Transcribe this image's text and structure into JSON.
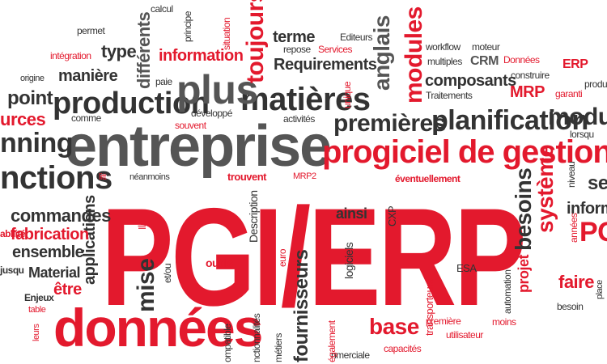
{
  "palette": {
    "red": "#e3192d",
    "dark": "#333333",
    "gray": "#555555",
    "light": "#888888",
    "background": "#ffffff"
  },
  "words": [
    {
      "id": "pgi-erp",
      "text": "PGI/ERP",
      "color": "red"
    },
    {
      "id": "entreprise",
      "text": "entreprise",
      "color": "gray"
    },
    {
      "id": "donnees",
      "text": "données",
      "color": "red"
    },
    {
      "id": "progiciel-de-gestion",
      "text": "progiciel de gestion in",
      "color": "red"
    },
    {
      "id": "production",
      "text": "production",
      "color": "dark"
    },
    {
      "id": "matieres",
      "text": "matières",
      "color": "dark"
    },
    {
      "id": "plus",
      "text": "plus",
      "color": "gray"
    },
    {
      "id": "nctions",
      "text": "nctions",
      "color": "dark"
    },
    {
      "id": "planification",
      "text": "planification",
      "color": "dark"
    },
    {
      "id": "premieres",
      "text": "premières",
      "color": "dark"
    },
    {
      "id": "modules",
      "text": "modules",
      "color": "red"
    },
    {
      "id": "anglais",
      "text": "anglais",
      "color": "gray"
    },
    {
      "id": "toujours",
      "text": "toujours",
      "color": "red"
    },
    {
      "id": "differents",
      "text": "différents",
      "color": "gray"
    },
    {
      "id": "information",
      "text": "information",
      "color": "red"
    },
    {
      "id": "requirements",
      "text": "Requirements",
      "color": "dark"
    },
    {
      "id": "terme",
      "text": "terme",
      "color": "dark"
    },
    {
      "id": "type",
      "text": "type",
      "color": "dark"
    },
    {
      "id": "maniere",
      "text": "manière",
      "color": "dark"
    },
    {
      "id": "point",
      "text": "point",
      "color": "dark"
    },
    {
      "id": "urces",
      "text": "urces",
      "color": "red"
    },
    {
      "id": "nning",
      "text": "nning",
      "color": "dark"
    },
    {
      "id": "commandes",
      "text": "commandes",
      "color": "dark"
    },
    {
      "id": "fabrication",
      "text": "fabrication",
      "color": "red"
    },
    {
      "id": "ensemble",
      "text": "ensemble",
      "color": "dark"
    },
    {
      "id": "material",
      "text": "Material",
      "color": "dark"
    },
    {
      "id": "etre",
      "text": "être",
      "color": "red"
    },
    {
      "id": "enjeux",
      "text": "Enjeux",
      "color": "dark"
    },
    {
      "id": "applications",
      "text": "applications",
      "color": "dark"
    },
    {
      "id": "mise",
      "text": "mise",
      "color": "dark"
    },
    {
      "id": "fournisseurs",
      "text": "fournisseurs",
      "color": "dark"
    },
    {
      "id": "base",
      "text": "base",
      "color": "red"
    },
    {
      "id": "ainsi",
      "text": "ainsi",
      "color": "dark"
    },
    {
      "id": "besoins",
      "text": "besoins",
      "color": "dark"
    },
    {
      "id": "systeme",
      "text": "système",
      "color": "red"
    },
    {
      "id": "projet",
      "text": "projet",
      "color": "red"
    },
    {
      "id": "faire",
      "text": "faire",
      "color": "red"
    },
    {
      "id": "composants",
      "text": "composants",
      "color": "dark"
    },
    {
      "id": "mrp",
      "text": "MRP",
      "color": "red"
    },
    {
      "id": "crm",
      "text": "CRM",
      "color": "gray"
    },
    {
      "id": "erp-small",
      "text": "ERP",
      "color": "red"
    },
    {
      "id": "module-right",
      "text": "module",
      "color": "dark"
    },
    {
      "id": "eventuellement",
      "text": "éventuellement",
      "color": "red"
    },
    {
      "id": "trouvent",
      "text": "trouvent",
      "color": "red"
    },
    {
      "id": "description",
      "text": "Description",
      "color": "dark"
    },
    {
      "id": "outils",
      "text": "outils",
      "color": "red"
    },
    {
      "id": "logiciels",
      "text": "logiciels",
      "color": "dark"
    },
    {
      "id": "transporteurs",
      "text": "transporteurs",
      "color": "red"
    },
    {
      "id": "utilisateur",
      "text": "utilisateur",
      "color": "red"
    },
    {
      "id": "moins",
      "text": "moins",
      "color": "red"
    },
    {
      "id": "capacites",
      "text": "capacités",
      "color": "red"
    },
    {
      "id": "egalement",
      "text": "également",
      "color": "red"
    },
    {
      "id": "euro",
      "text": "euro",
      "color": "red"
    },
    {
      "id": "cxp",
      "text": "CXP",
      "color": "dark"
    },
    {
      "id": "automation",
      "text": "automation",
      "color": "dark"
    },
    {
      "id": "besoin",
      "text": "besoin",
      "color": "dark"
    },
    {
      "id": "esa",
      "text": "ESA",
      "color": "dark"
    },
    {
      "id": "premiere",
      "text": "première",
      "color": "red"
    },
    {
      "id": "calcul",
      "text": "calcul",
      "color": "dark"
    },
    {
      "id": "permet",
      "text": "permet",
      "color": "dark"
    },
    {
      "id": "integration",
      "text": "intégration",
      "color": "red"
    },
    {
      "id": "origine",
      "text": "origine",
      "color": "dark"
    },
    {
      "id": "comme",
      "text": "comme",
      "color": "dark"
    },
    {
      "id": "developpe",
      "text": "développé",
      "color": "dark"
    },
    {
      "id": "souvent",
      "text": "souvent",
      "color": "red"
    },
    {
      "id": "activites",
      "text": "activités",
      "color": "dark"
    },
    {
      "id": "paie",
      "text": "paie",
      "color": "dark"
    },
    {
      "id": "services",
      "text": "Services",
      "color": "red"
    },
    {
      "id": "editeurs",
      "text": "Editeurs",
      "color": "dark"
    },
    {
      "id": "repose",
      "text": "repose",
      "color": "dark"
    },
    {
      "id": "workflow",
      "text": "workflow",
      "color": "dark"
    },
    {
      "id": "moteur",
      "text": "moteur",
      "color": "dark"
    },
    {
      "id": "multiples",
      "text": "multiples",
      "color": "dark"
    },
    {
      "id": "donnees-small",
      "text": "Données",
      "color": "red"
    },
    {
      "id": "construire",
      "text": "construire",
      "color": "dark"
    },
    {
      "id": "traitements",
      "text": "Traitements",
      "color": "dark"
    },
    {
      "id": "garanti",
      "text": "garanti",
      "color": "red"
    },
    {
      "id": "lorsqu",
      "text": "lorsqu",
      "color": "dark"
    },
    {
      "id": "neanmoins",
      "text": "néanmoins",
      "color": "dark"
    },
    {
      "id": "litt",
      "text": "litt",
      "color": "red"
    },
    {
      "id": "mrp2",
      "text": "MRP2",
      "color": "red"
    },
    {
      "id": "ils",
      "text": "Ils",
      "color": "red"
    },
    {
      "id": "table",
      "text": "table",
      "color": "red"
    },
    {
      "id": "leurs",
      "text": "leurs",
      "color": "red"
    },
    {
      "id": "metiers",
      "text": "métiers",
      "color": "dark"
    },
    {
      "id": "ompatible",
      "text": "ompatible",
      "color": "dark"
    },
    {
      "id": "nmerciale",
      "text": "nmerciale",
      "color": "dark"
    },
    {
      "id": "nctionnalites",
      "text": "nctionnalités",
      "color": "dark"
    },
    {
      "id": "et-ou",
      "text": "et/ou",
      "color": "dark"
    },
    {
      "id": "principe",
      "text": "principe",
      "color": "dark"
    },
    {
      "id": "situation",
      "text": "situation",
      "color": "red"
    },
    {
      "id": "unique",
      "text": "unique",
      "color": "red"
    },
    {
      "id": "se",
      "text": "se",
      "color": "dark"
    },
    {
      "id": "inform",
      "text": "inform",
      "color": "dark"
    },
    {
      "id": "pg",
      "text": "PG",
      "color": "red"
    },
    {
      "id": "annees",
      "text": "années",
      "color": "red"
    },
    {
      "id": "produits",
      "text": "produits",
      "color": "dark"
    },
    {
      "id": "place",
      "text": "place",
      "color": "dark"
    },
    {
      "id": "niveau",
      "text": "niveau",
      "color": "gray"
    },
    {
      "id": "ustrie",
      "text": "ustrie",
      "color": "red"
    },
    {
      "id": "abilite",
      "text": "abilité",
      "color": "dark"
    },
    {
      "id": "jusqu",
      "text": "jusqu",
      "color": "dark"
    }
  ]
}
